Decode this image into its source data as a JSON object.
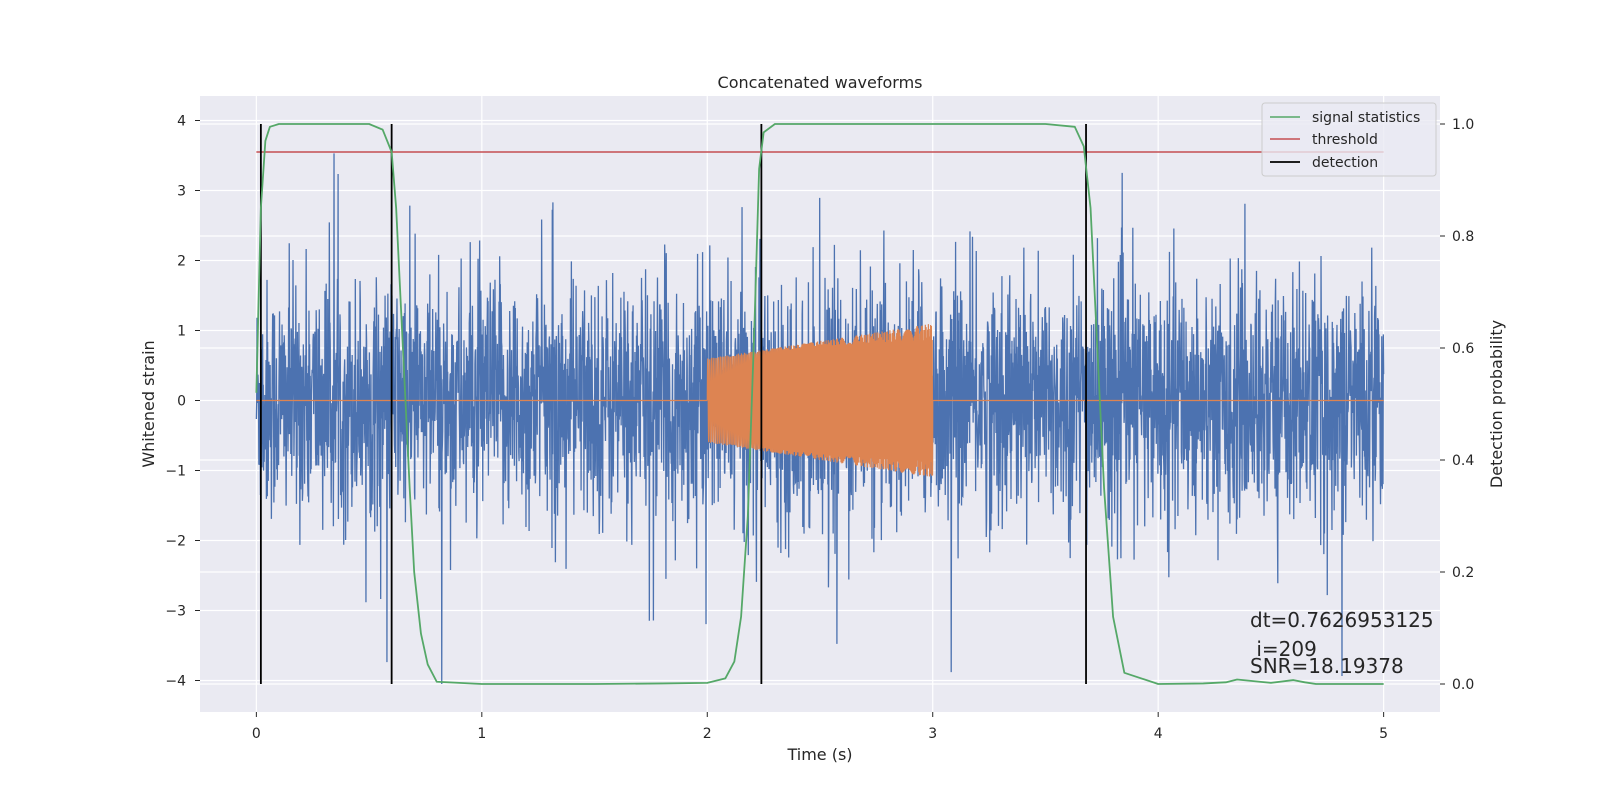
{
  "chart_data": {
    "type": "line",
    "title": "Concatenated waveforms",
    "xlabel": "Time (s)",
    "ylabel_left": "Whitened strain",
    "ylabel_right": "Detection probability",
    "xlim": [
      -0.25,
      5.25
    ],
    "ylim_left": [
      -4.45,
      4.35
    ],
    "ylim_right": [
      -0.05,
      1.05
    ],
    "x_ticks": [
      0,
      1,
      2,
      3,
      4,
      5
    ],
    "y_ticks_left": [
      -4,
      -3,
      -2,
      -1,
      0,
      1,
      2,
      3,
      4
    ],
    "y_ticks_right": [
      0.0,
      0.2,
      0.4,
      0.6,
      0.8,
      1.0
    ],
    "x_tick_labels": [
      "0",
      "1",
      "2",
      "3",
      "4",
      "5"
    ],
    "y_tick_labels_left": [
      "−4",
      "−3",
      "−2",
      "−1",
      "0",
      "1",
      "2",
      "3",
      "4"
    ],
    "y_tick_labels_right": [
      "0.0",
      "0.2",
      "0.4",
      "0.6",
      "0.8",
      "1.0"
    ],
    "grid": true,
    "legend_position": "top-right",
    "colors": {
      "strain": "#4c72b0",
      "injection": "#dd8452",
      "signal_statistics": "#55a868",
      "threshold": "#c44e52",
      "detection": "#000000",
      "background": "#eaeaf2",
      "grid": "#ffffff"
    },
    "series": [
      {
        "name": "signal statistics",
        "axis": "right",
        "x": [
          0.0,
          0.02,
          0.04,
          0.06,
          0.1,
          0.2,
          0.5,
          0.56,
          0.6,
          0.62,
          0.65,
          0.68,
          0.7,
          0.73,
          0.76,
          0.8,
          1.0,
          1.5,
          1.8,
          2.0,
          2.08,
          2.12,
          2.15,
          2.18,
          2.21,
          2.23,
          2.25,
          2.3,
          2.5,
          3.0,
          3.5,
          3.63,
          3.67,
          3.7,
          3.73,
          3.76,
          3.8,
          3.85,
          4.0,
          4.2,
          4.3,
          4.35,
          4.4,
          4.5,
          4.6,
          4.65,
          4.7,
          5.0
        ],
        "y": [
          0.52,
          0.85,
          0.97,
          0.995,
          1.0,
          1.0,
          1.0,
          0.99,
          0.95,
          0.85,
          0.6,
          0.35,
          0.2,
          0.09,
          0.035,
          0.004,
          0.0,
          0.0,
          0.001,
          0.002,
          0.01,
          0.04,
          0.12,
          0.3,
          0.65,
          0.92,
          0.985,
          1.0,
          1.0,
          1.0,
          1.0,
          0.995,
          0.96,
          0.85,
          0.6,
          0.35,
          0.12,
          0.02,
          0.0,
          0.001,
          0.003,
          0.008,
          0.006,
          0.002,
          0.007,
          0.003,
          0.0,
          0.0
        ]
      },
      {
        "name": "threshold",
        "axis": "right",
        "x": [
          0.0,
          5.0
        ],
        "y": [
          0.95,
          0.95
        ]
      },
      {
        "name": "detection",
        "axis": "left",
        "x": [
          0.02,
          0.6,
          2.24,
          3.68
        ],
        "y_range": [
          -4.05,
          3.95
        ]
      },
      {
        "axis": "left",
        "description_free": true,
        "x_range": [
          0,
          5
        ],
        "noise_sigma": 0.85
      },
      {
        "axis": "left",
        "x_range": [
          2.0,
          3.0
        ],
        "amplitude_range": [
          0.6,
          1.1
        ]
      }
    ],
    "annotations": {
      "dt": "dt=0.7626953125",
      "i": " i=209",
      "snr": "SNR=18.19378"
    }
  }
}
